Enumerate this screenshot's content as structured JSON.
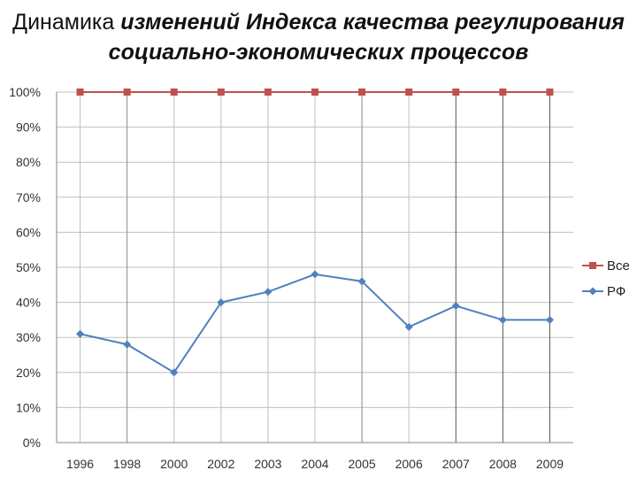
{
  "title": {
    "line1_plain": "Динамика ",
    "line1_italic": "изменений Индекса качества регулирования",
    "line2_italic": "социально-экономических процессов"
  },
  "chart_data": {
    "type": "line",
    "categories": [
      "1996",
      "1998",
      "2000",
      "2002",
      "2003",
      "2004",
      "2005",
      "2006",
      "2007",
      "2008",
      "2009"
    ],
    "series": [
      {
        "name": "Все",
        "values": [
          100,
          100,
          100,
          100,
          100,
          100,
          100,
          100,
          100,
          100,
          100
        ],
        "color": "#C0504D",
        "marker": "square"
      },
      {
        "name": "РФ",
        "values": [
          31,
          28,
          20,
          40,
          43,
          48,
          46,
          33,
          39,
          35,
          35
        ],
        "color": "#4F81BD",
        "marker": "diamond"
      }
    ],
    "ylim": [
      0,
      100
    ],
    "yticks": [
      "0%",
      "10%",
      "20%",
      "30%",
      "40%",
      "50%",
      "60%",
      "70%",
      "80%",
      "90%",
      "100%"
    ],
    "grid": true,
    "legend": "right",
    "highlight_vertical_lines": [
      "1998",
      "2005",
      "2007",
      "2008",
      "2009"
    ]
  }
}
